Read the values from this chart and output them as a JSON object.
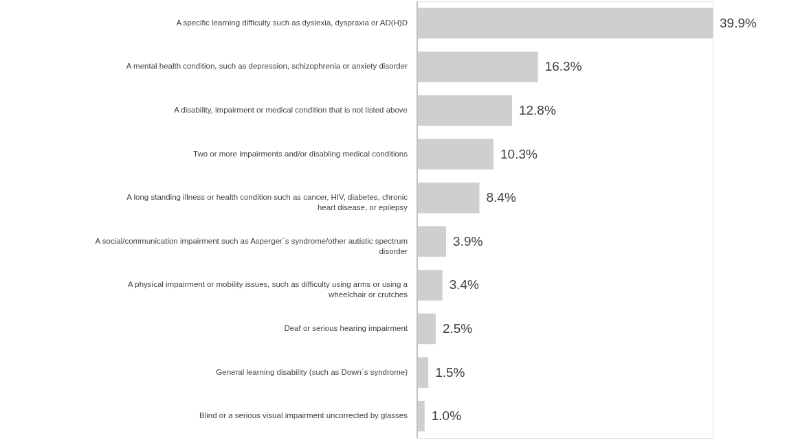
{
  "chart_data": {
    "type": "bar",
    "orientation": "horizontal",
    "categories": [
      "A specific learning difficulty such as dyslexia, dyspraxia or AD(H)D",
      "A mental health condition, such as depression, schizophrenia or anxiety disorder",
      "A disability, impairment or medical condition that is not listed above",
      "Two or more impairments and/or disabling medical conditions",
      "A long standing illness or health condition such as cancer, HIV, diabetes, chronic heart disease, or epilepsy",
      "A social/communication impairment such as Asperger´s syndrome/other autistic spectrum disorder",
      "A physical impairment or mobility issues, such as difficulty using arms or using a wheelchair or crutches",
      "Deaf or serious hearing impairment",
      "General learning disability (such as Down´s syndrome)",
      "Blind or a serious visual impairment uncorrected by glasses"
    ],
    "values": [
      39.9,
      16.3,
      12.8,
      10.3,
      8.4,
      3.9,
      3.4,
      2.5,
      1.5,
      1.0
    ],
    "value_labels": [
      "39.9%",
      "16.3%",
      "12.8%",
      "10.3%",
      "8.4%",
      "3.9%",
      "3.4%",
      "2.5%",
      "1.5%",
      "1.0%"
    ],
    "color": "#d0cece",
    "grid": false
  }
}
